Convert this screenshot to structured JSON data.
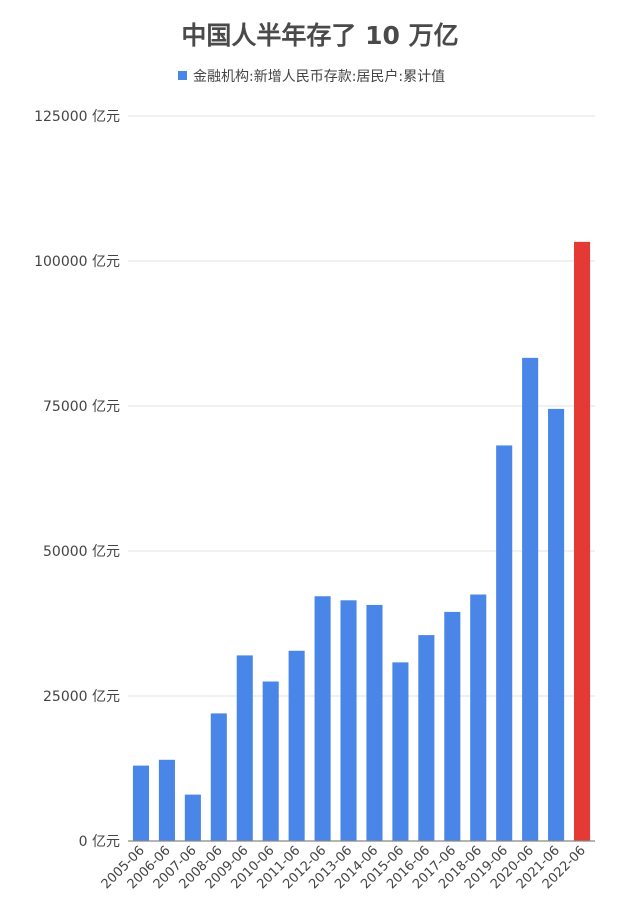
{
  "chart_data": {
    "type": "bar",
    "title": "中国人半年存了 10 万亿",
    "legend": {
      "label": "金融机构:新增人民币存款:居民户:累计值",
      "placement": "top"
    },
    "categories": [
      "2005-06",
      "2006-06",
      "2007-06",
      "2008-06",
      "2009-06",
      "2010-06",
      "2011-06",
      "2012-06",
      "2013-06",
      "2014-06",
      "2015-06",
      "2016-06",
      "2017-06",
      "2018-06",
      "2019-06",
      "2020-06",
      "2021-06",
      "2022-06"
    ],
    "series": [
      {
        "name": "金融机构:新增人民币存款:居民户:累计值",
        "values": [
          13000,
          14000,
          8000,
          22000,
          32000,
          27500,
          32800,
          42200,
          41500,
          40700,
          30800,
          35500,
          39500,
          42500,
          68200,
          83300,
          74500,
          103300
        ]
      }
    ],
    "highlight_index": 17,
    "colors": {
      "bar": "#4a86e8",
      "highlight": "#e53935"
    },
    "ylim": [
      0,
      125000
    ],
    "yticks": [
      0,
      25000,
      50000,
      75000,
      100000,
      125000
    ],
    "ytick_unit": " 亿元",
    "grid": true
  }
}
